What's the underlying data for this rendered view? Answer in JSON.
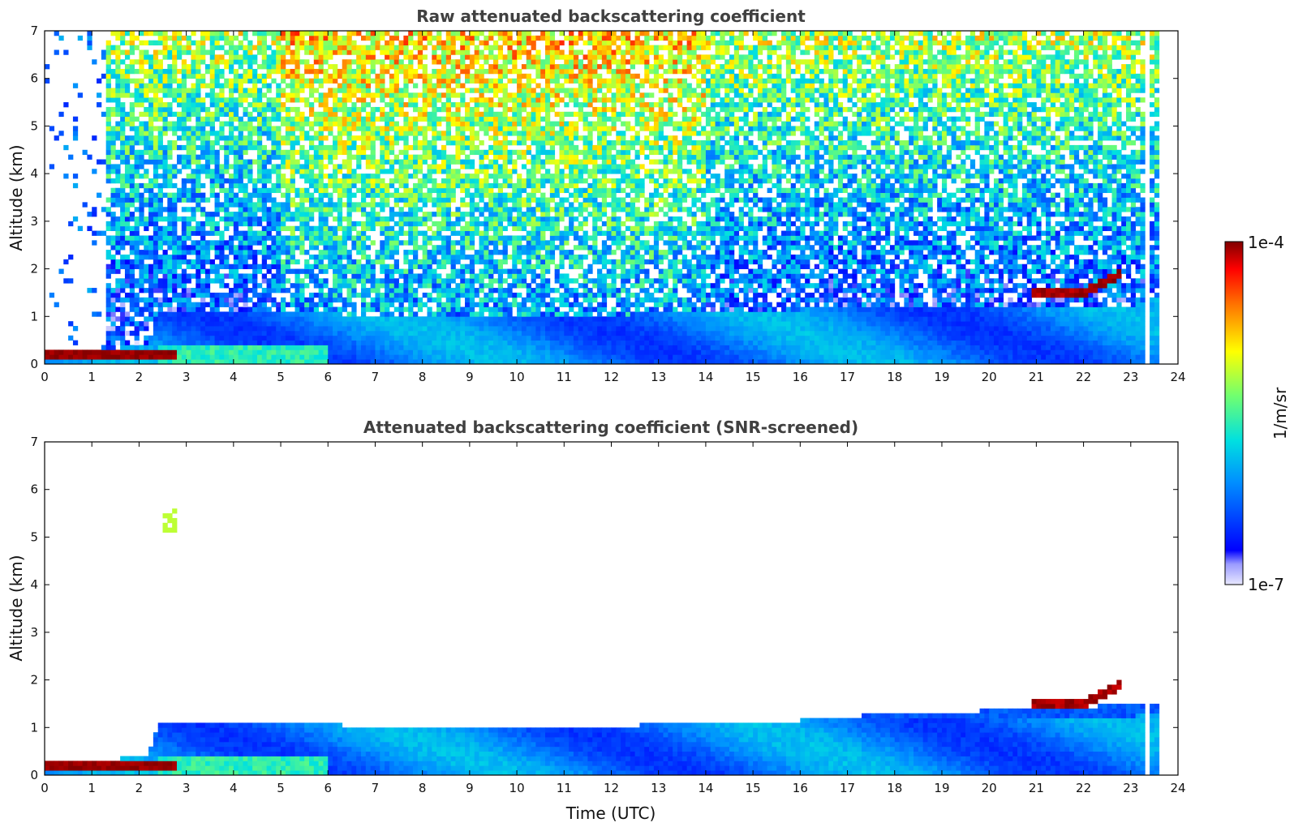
{
  "chart_data": [
    {
      "type": "heatmap",
      "title": "Raw attenuated backscattering coefficient",
      "xlabel": "",
      "ylabel": "Altitude (km)",
      "xlim": [
        0,
        24
      ],
      "ylim": [
        0,
        7
      ],
      "xticks": [
        "0",
        "1",
        "2",
        "3",
        "4",
        "5",
        "6",
        "7",
        "8",
        "9",
        "10",
        "11",
        "12",
        "13",
        "14",
        "15",
        "16",
        "17",
        "18",
        "19",
        "20",
        "21",
        "22",
        "23",
        "24"
      ],
      "yticks": [
        "0",
        "1",
        "2",
        "3",
        "4",
        "5",
        "6",
        "7"
      ],
      "data_end_hour": 23.65,
      "features": [
        {
          "name": "boundary layer",
          "x_range": [
            0,
            23.65
          ],
          "alt_range": [
            0,
            1.1
          ],
          "level": 0.33
        },
        {
          "name": "low layer (saturated)",
          "x_range": [
            0,
            2.8
          ],
          "alt_range": [
            0.05,
            0.3
          ],
          "level": 0.97
        },
        {
          "name": "elevated cloud",
          "x_range": [
            20.9,
            22.8
          ],
          "alt_range": [
            1.45,
            1.9
          ],
          "level": 0.97
        },
        {
          "name": "noisy free troposphere",
          "x_range": [
            1.3,
            23.65
          ],
          "alt_range": [
            1.1,
            7
          ],
          "level": 0.55
        }
      ]
    },
    {
      "type": "heatmap",
      "title": "Attenuated backscattering coefficient (SNR-screened)",
      "xlabel": "Time (UTC)",
      "ylabel": "Altitude (km)",
      "xlim": [
        0,
        24
      ],
      "ylim": [
        0,
        7
      ],
      "xticks": [
        "0",
        "1",
        "2",
        "3",
        "4",
        "5",
        "6",
        "7",
        "8",
        "9",
        "10",
        "11",
        "12",
        "13",
        "14",
        "15",
        "16",
        "17",
        "18",
        "19",
        "20",
        "21",
        "22",
        "23",
        "24"
      ],
      "yticks": [
        "0",
        "1",
        "2",
        "3",
        "4",
        "5",
        "6",
        "7"
      ],
      "data_end_hour": 23.65,
      "features": [
        {
          "name": "boundary layer",
          "x_range": [
            0,
            23.65
          ],
          "alt_range": [
            0,
            1.5
          ],
          "level": 0.3
        },
        {
          "name": "low layer (saturated)",
          "x_range": [
            0,
            2.8
          ],
          "alt_range": [
            0.05,
            0.3
          ],
          "level": 1.0
        },
        {
          "name": "elevated cloud",
          "x_range": [
            20.9,
            22.8
          ],
          "alt_range": [
            1.45,
            1.9
          ],
          "level": 1.0
        },
        {
          "name": "isolated echo",
          "x_range": [
            2.5,
            2.8
          ],
          "alt_range": [
            5.1,
            5.6
          ],
          "level": 0.7
        }
      ]
    }
  ],
  "colorbar": {
    "label": "1/m/sr",
    "max_label": "1e-4",
    "min_label": "1e-7"
  }
}
